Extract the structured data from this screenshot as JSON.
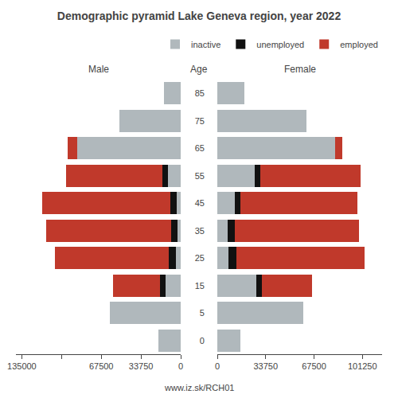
{
  "chart_data": [
    {
      "type": "bar",
      "orientation": "horizontal",
      "stacked": true,
      "title": "Demographic pyramid Lake Geneva region, year 2022",
      "subtitle": "Male",
      "ylabel": "Age",
      "categories": [
        "0",
        "5",
        "15",
        "25",
        "35",
        "45",
        "55",
        "65",
        "75",
        "85"
      ],
      "series": [
        {
          "name": "inactive",
          "color": "#b0b8bc",
          "values": [
            19000,
            60000,
            13000,
            4000,
            2500,
            3500,
            11000,
            88000,
            52000,
            14000
          ]
        },
        {
          "name": "unemployed",
          "color": "#111111",
          "values": [
            0,
            0,
            4500,
            6000,
            5500,
            5000,
            4500,
            0,
            0,
            0
          ]
        },
        {
          "name": "employed",
          "color": "#c0392b",
          "values": [
            0,
            0,
            40000,
            97000,
            106000,
            109000,
            82000,
            8000,
            0,
            0
          ]
        }
      ],
      "xlim": [
        140000,
        0
      ],
      "xticks": [
        0,
        33750,
        67500,
        {
          "value": 101250,
          "label": null
        },
        135000
      ],
      "grid": false,
      "annotations": [
        {
          "text": "www.iz.sk/RCH01"
        }
      ]
    },
    {
      "type": "bar",
      "orientation": "horizontal",
      "stacked": true,
      "subtitle": "Female",
      "categories": [
        "0",
        "5",
        "15",
        "25",
        "35",
        "45",
        "55",
        "65",
        "75",
        "85"
      ],
      "series": [
        {
          "name": "inactive",
          "color": "#b0b8bc",
          "values": [
            16000,
            60000,
            27000,
            8000,
            7000,
            12000,
            26000,
            82000,
            62000,
            19000
          ]
        },
        {
          "name": "unemployed",
          "color": "#111111",
          "values": [
            0,
            0,
            4000,
            5500,
            5000,
            4000,
            4000,
            0,
            0,
            0
          ]
        },
        {
          "name": "employed",
          "color": "#c0392b",
          "values": [
            0,
            0,
            35000,
            89000,
            87000,
            82000,
            70000,
            5000,
            0,
            0
          ]
        }
      ],
      "xlim": [
        0,
        115000
      ],
      "xticks": [
        0,
        33750,
        67500,
        101250
      ],
      "grid": false,
      "legend": "upper right"
    }
  ]
}
